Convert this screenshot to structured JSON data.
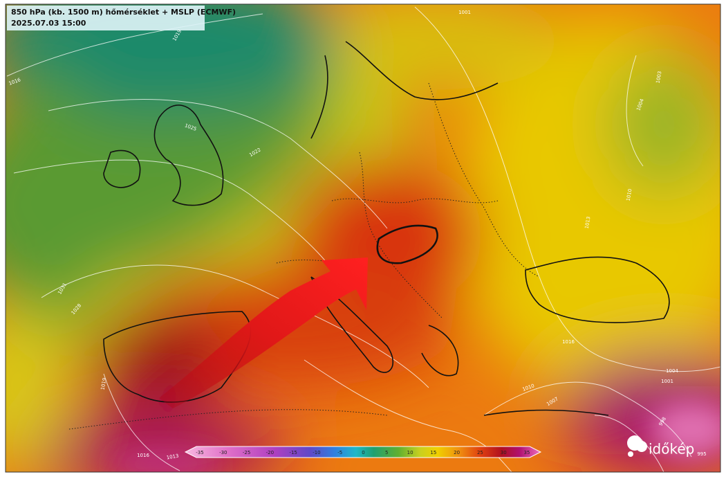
{
  "header": {
    "title": "850 hPa (kb. 1500 m) hőmérséklet + MSLP (ECMWF)",
    "datetime": "2025.07.03 15:00"
  },
  "isobar_labels": [
    1016,
    1019,
    1025,
    1022,
    1031,
    1028,
    1019,
    1016,
    1013,
    1001,
    1003,
    1004,
    1010,
    1013,
    1016,
    1004,
    1001,
    1010,
    1007,
    998,
    995
  ],
  "colorbar": {
    "ticks": [
      -35,
      -30,
      -25,
      -20,
      -15,
      -10,
      -5,
      0,
      5,
      10,
      15,
      20,
      25,
      30,
      35
    ]
  },
  "logo": "időkép"
}
